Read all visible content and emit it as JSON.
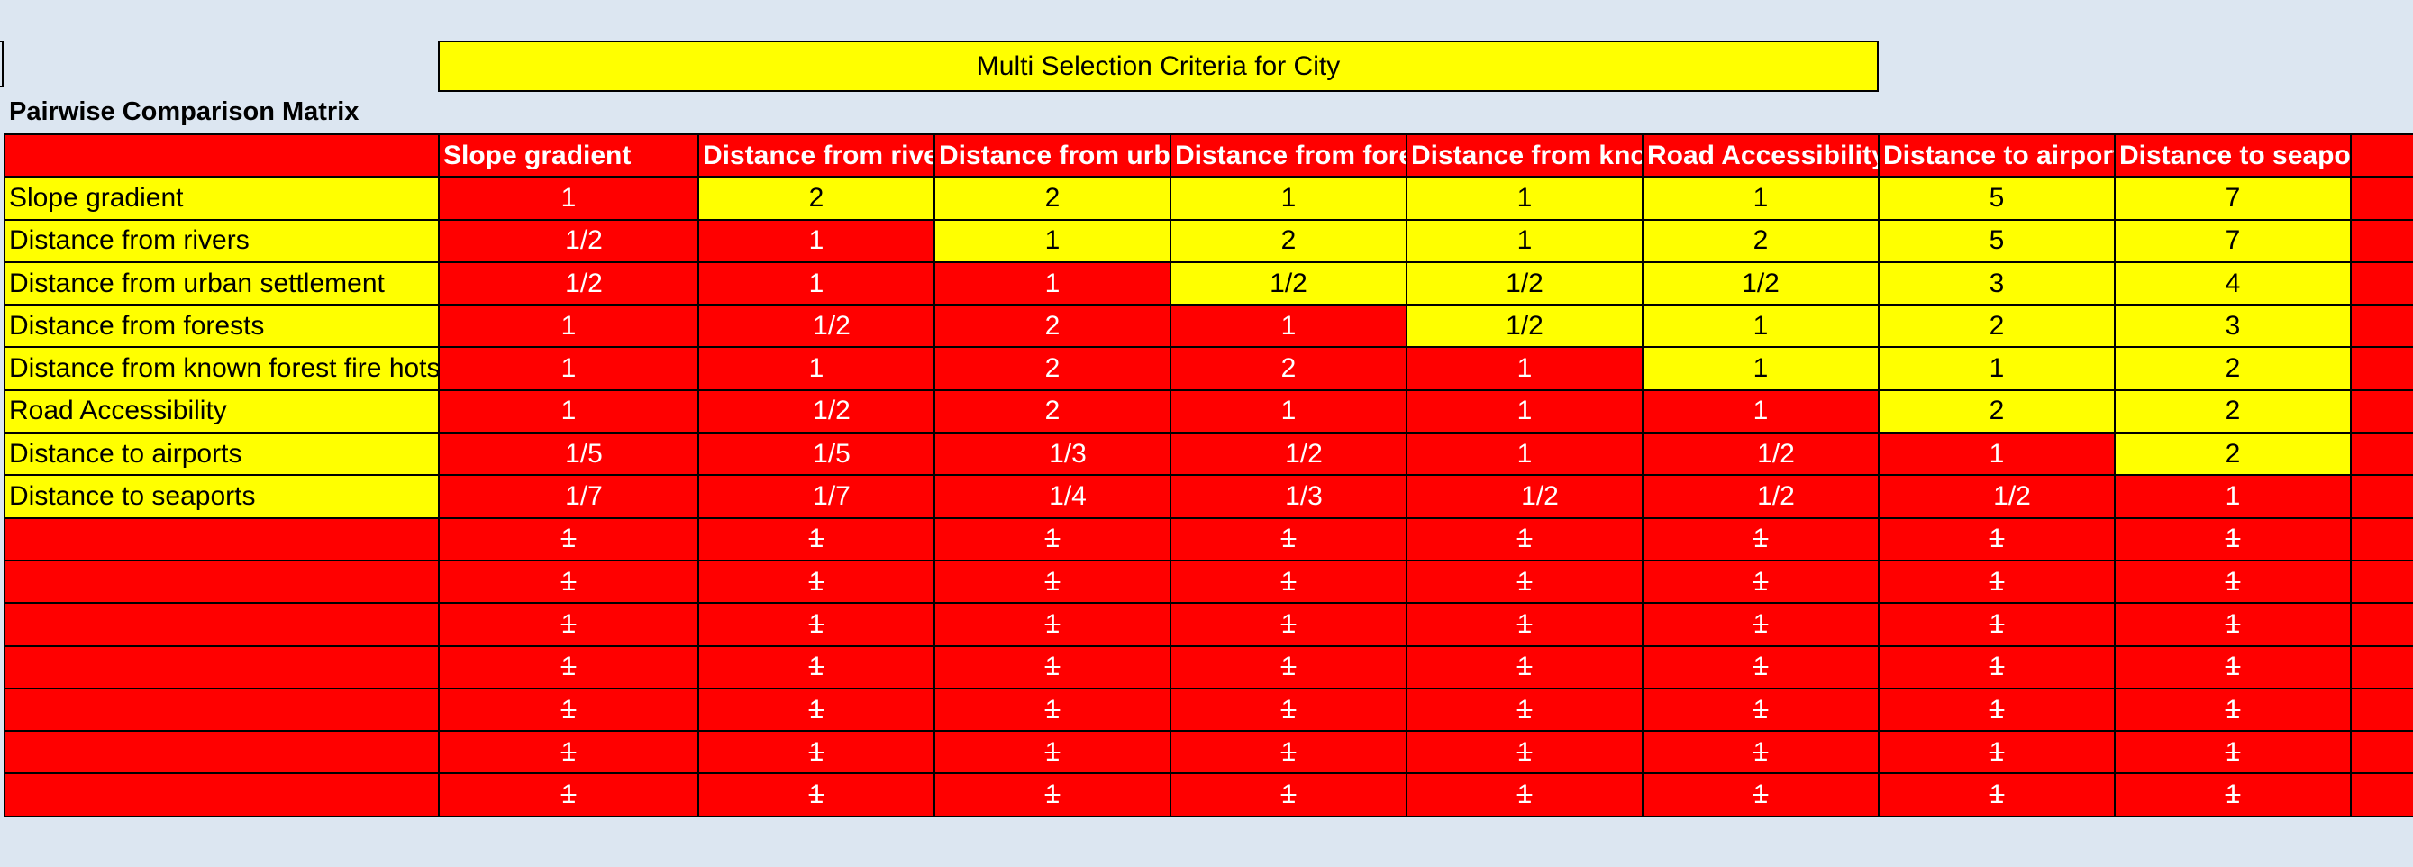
{
  "sheet": {
    "title": "Multi Selection Criteria for City",
    "matrix_caption": "Pairwise Comparison Matrix"
  },
  "colors": {
    "background": "#dce6f1",
    "highlight_yellow": "#ffff00",
    "highlight_red": "#ff0000",
    "header_text": "#ffffff"
  },
  "columns": [
    "Slope gradient",
    "Distance from rivers",
    "Distance from urban settlement",
    "Distance from forests",
    "Distance from known forest fire hotspots",
    "Road Accessibility",
    "Distance to airports",
    "Distance to seaports"
  ],
  "rows": [
    {
      "label": "Slope gradient",
      "values": [
        "1",
        "2",
        "2",
        "1",
        "1",
        "1",
        "5",
        "7"
      ]
    },
    {
      "label": "Distance from rivers",
      "values": [
        "1/2",
        "1",
        "1",
        "2",
        "1",
        "2",
        "5",
        "7"
      ]
    },
    {
      "label": "Distance from urban settlement",
      "values": [
        "1/2",
        "1",
        "1",
        "1/2",
        "1/2",
        "1/2",
        "3",
        "4"
      ]
    },
    {
      "label": "Distance from forests",
      "values": [
        "1",
        "1/2",
        "2",
        "1",
        "1/2",
        "1",
        "2",
        "3"
      ]
    },
    {
      "label": "Distance from known forest fire hotspots",
      "values": [
        "1",
        "1",
        "2",
        "2",
        "1",
        "1",
        "1",
        "2"
      ]
    },
    {
      "label": "Road Accessibility",
      "values": [
        "1",
        "1/2",
        "2",
        "1",
        "1",
        "1",
        "2",
        "2"
      ]
    },
    {
      "label": "Distance to airports",
      "values": [
        "1/5",
        "1/5",
        "1/3",
        "1/2",
        "1",
        "1/2",
        "1",
        "2"
      ]
    },
    {
      "label": "Distance to seaports",
      "values": [
        "1/7",
        "1/7",
        "1/4",
        "1/3",
        "1/2",
        "1/2",
        "1/2",
        "1"
      ]
    }
  ],
  "empty_rows": [
    {
      "values": [
        "1",
        "1",
        "1",
        "1",
        "1",
        "1",
        "1",
        "1"
      ]
    },
    {
      "values": [
        "1",
        "1",
        "1",
        "1",
        "1",
        "1",
        "1",
        "1"
      ]
    },
    {
      "values": [
        "1",
        "1",
        "1",
        "1",
        "1",
        "1",
        "1",
        "1"
      ]
    },
    {
      "values": [
        "1",
        "1",
        "1",
        "1",
        "1",
        "1",
        "1",
        "1"
      ]
    },
    {
      "values": [
        "1",
        "1",
        "1",
        "1",
        "1",
        "1",
        "1",
        "1"
      ]
    },
    {
      "values": [
        "1",
        "1",
        "1",
        "1",
        "1",
        "1",
        "1",
        "1"
      ]
    },
    {
      "values": [
        "1",
        "1",
        "1",
        "1",
        "1",
        "1",
        "1",
        "1"
      ]
    }
  ],
  "dropdown": {
    "row": 4,
    "col": 7,
    "icon": "chevron-down-icon"
  }
}
